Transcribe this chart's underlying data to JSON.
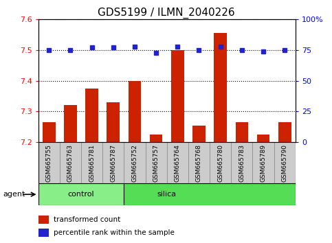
{
  "title": "GDS5199 / ILMN_2040226",
  "samples": [
    "GSM665755",
    "GSM665763",
    "GSM665781",
    "GSM665787",
    "GSM665752",
    "GSM665757",
    "GSM665764",
    "GSM665768",
    "GSM665780",
    "GSM665783",
    "GSM665789",
    "GSM665790"
  ],
  "red_values": [
    7.265,
    7.32,
    7.375,
    7.33,
    7.4,
    7.225,
    7.5,
    7.255,
    7.555,
    7.265,
    7.225,
    7.265
  ],
  "blue_values": [
    75,
    75,
    77,
    77,
    78,
    73,
    78,
    75,
    78,
    75,
    74,
    75
  ],
  "ylim_left": [
    7.2,
    7.6
  ],
  "ylim_right": [
    0,
    100
  ],
  "yticks_left": [
    7.2,
    7.3,
    7.4,
    7.5,
    7.6
  ],
  "yticks_right": [
    0,
    25,
    50,
    75,
    100
  ],
  "control_samples": 4,
  "silica_samples": 8,
  "bar_color": "#CC2200",
  "dot_color": "#2222CC",
  "control_color": "#88EE88",
  "silica_color": "#55DD55",
  "xtick_bg_color": "#CCCCCC",
  "xtick_border_color": "#888888",
  "agent_label": "agent",
  "control_label": "control",
  "silica_label": "silica",
  "legend_red": "transformed count",
  "legend_blue": "percentile rank within the sample",
  "title_fontsize": 11,
  "tick_fontsize": 8,
  "sample_fontsize": 6.5,
  "legend_fontsize": 7.5
}
